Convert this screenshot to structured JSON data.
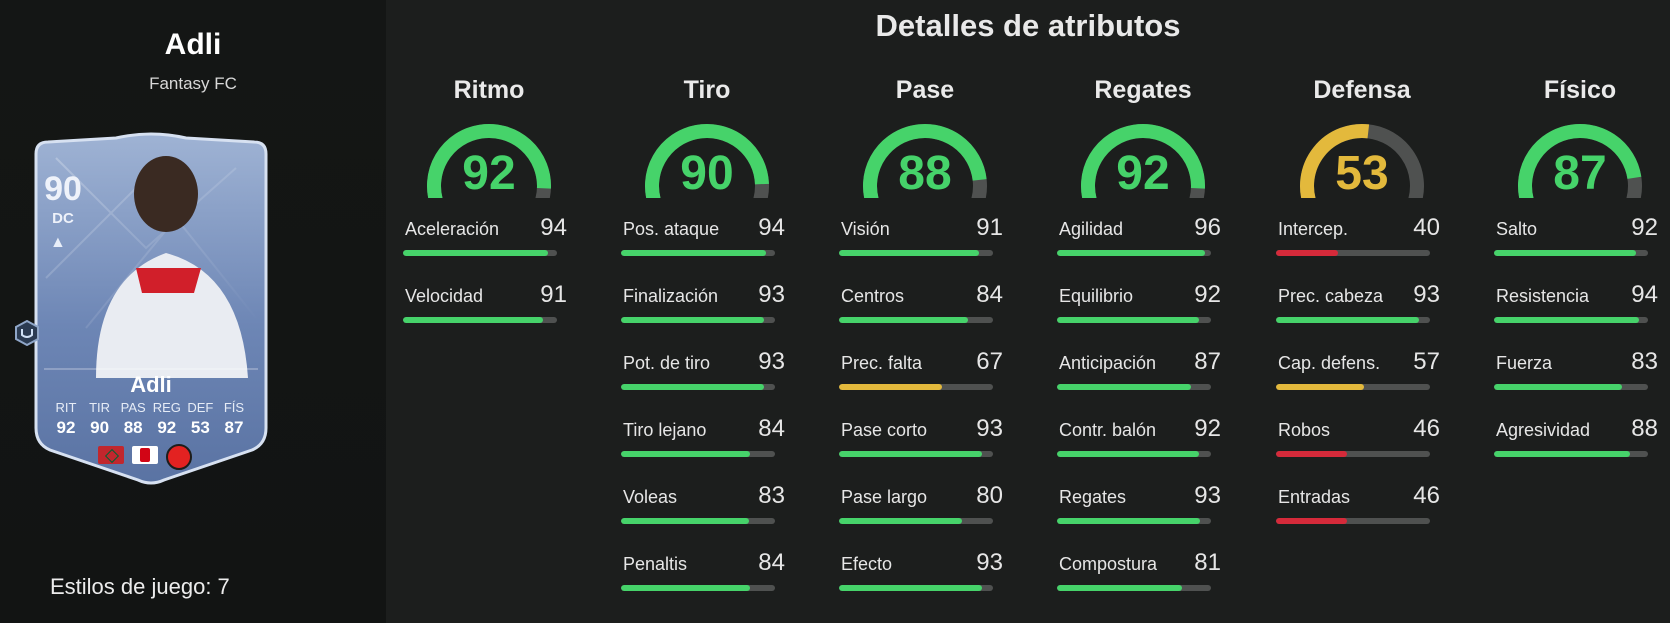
{
  "player": {
    "name": "Adli",
    "version": "Fantasy FC",
    "card": {
      "rating": "90",
      "position": "DC",
      "name": "Adli",
      "stat_labels": [
        "RIT",
        "TIR",
        "PAS",
        "REG",
        "DEF",
        "FÍS"
      ],
      "stat_values": [
        "92",
        "90",
        "88",
        "92",
        "53",
        "87"
      ]
    },
    "playstyles": "Estilos de juego: 7"
  },
  "panel_title": "Detalles de atributos",
  "colors": {
    "green": "#46d36a",
    "yellow": "#e3b93c",
    "red": "#d52a3a",
    "track": "#4f5150"
  },
  "categories": [
    {
      "label": "Ritmo",
      "value": "92",
      "color": "green",
      "stats": [
        {
          "name": "Aceleración",
          "value": "94"
        },
        {
          "name": "Velocidad",
          "value": "91"
        }
      ]
    },
    {
      "label": "Tiro",
      "value": "90",
      "color": "green",
      "stats": [
        {
          "name": "Pos. ataque",
          "value": "94"
        },
        {
          "name": "Finalización",
          "value": "93"
        },
        {
          "name": "Pot. de tiro",
          "value": "93"
        },
        {
          "name": "Tiro lejano",
          "value": "84"
        },
        {
          "name": "Voleas",
          "value": "83"
        },
        {
          "name": "Penaltis",
          "value": "84"
        }
      ]
    },
    {
      "label": "Pase",
      "value": "88",
      "color": "green",
      "stats": [
        {
          "name": "Visión",
          "value": "91"
        },
        {
          "name": "Centros",
          "value": "84"
        },
        {
          "name": "Prec. falta",
          "value": "67"
        },
        {
          "name": "Pase corto",
          "value": "93"
        },
        {
          "name": "Pase largo",
          "value": "80"
        },
        {
          "name": "Efecto",
          "value": "93"
        }
      ]
    },
    {
      "label": "Regates",
      "value": "92",
      "color": "green",
      "stats": [
        {
          "name": "Agilidad",
          "value": "96"
        },
        {
          "name": "Equilibrio",
          "value": "92"
        },
        {
          "name": "Anticipación",
          "value": "87"
        },
        {
          "name": "Contr. balón",
          "value": "92"
        },
        {
          "name": "Regates",
          "value": "93"
        },
        {
          "name": "Compostura",
          "value": "81"
        }
      ]
    },
    {
      "label": "Defensa",
      "value": "53",
      "color": "yellow",
      "stats": [
        {
          "name": "Intercep.",
          "value": "40"
        },
        {
          "name": "Prec. cabeza",
          "value": "93"
        },
        {
          "name": "Cap. defens.",
          "value": "57"
        },
        {
          "name": "Robos",
          "value": "46"
        },
        {
          "name": "Entradas",
          "value": "46"
        }
      ]
    },
    {
      "label": "Físico",
      "value": "87",
      "color": "green",
      "stats": [
        {
          "name": "Salto",
          "value": "92"
        },
        {
          "name": "Resistencia",
          "value": "94"
        },
        {
          "name": "Fuerza",
          "value": "83"
        },
        {
          "name": "Agresividad",
          "value": "88"
        }
      ]
    }
  ]
}
